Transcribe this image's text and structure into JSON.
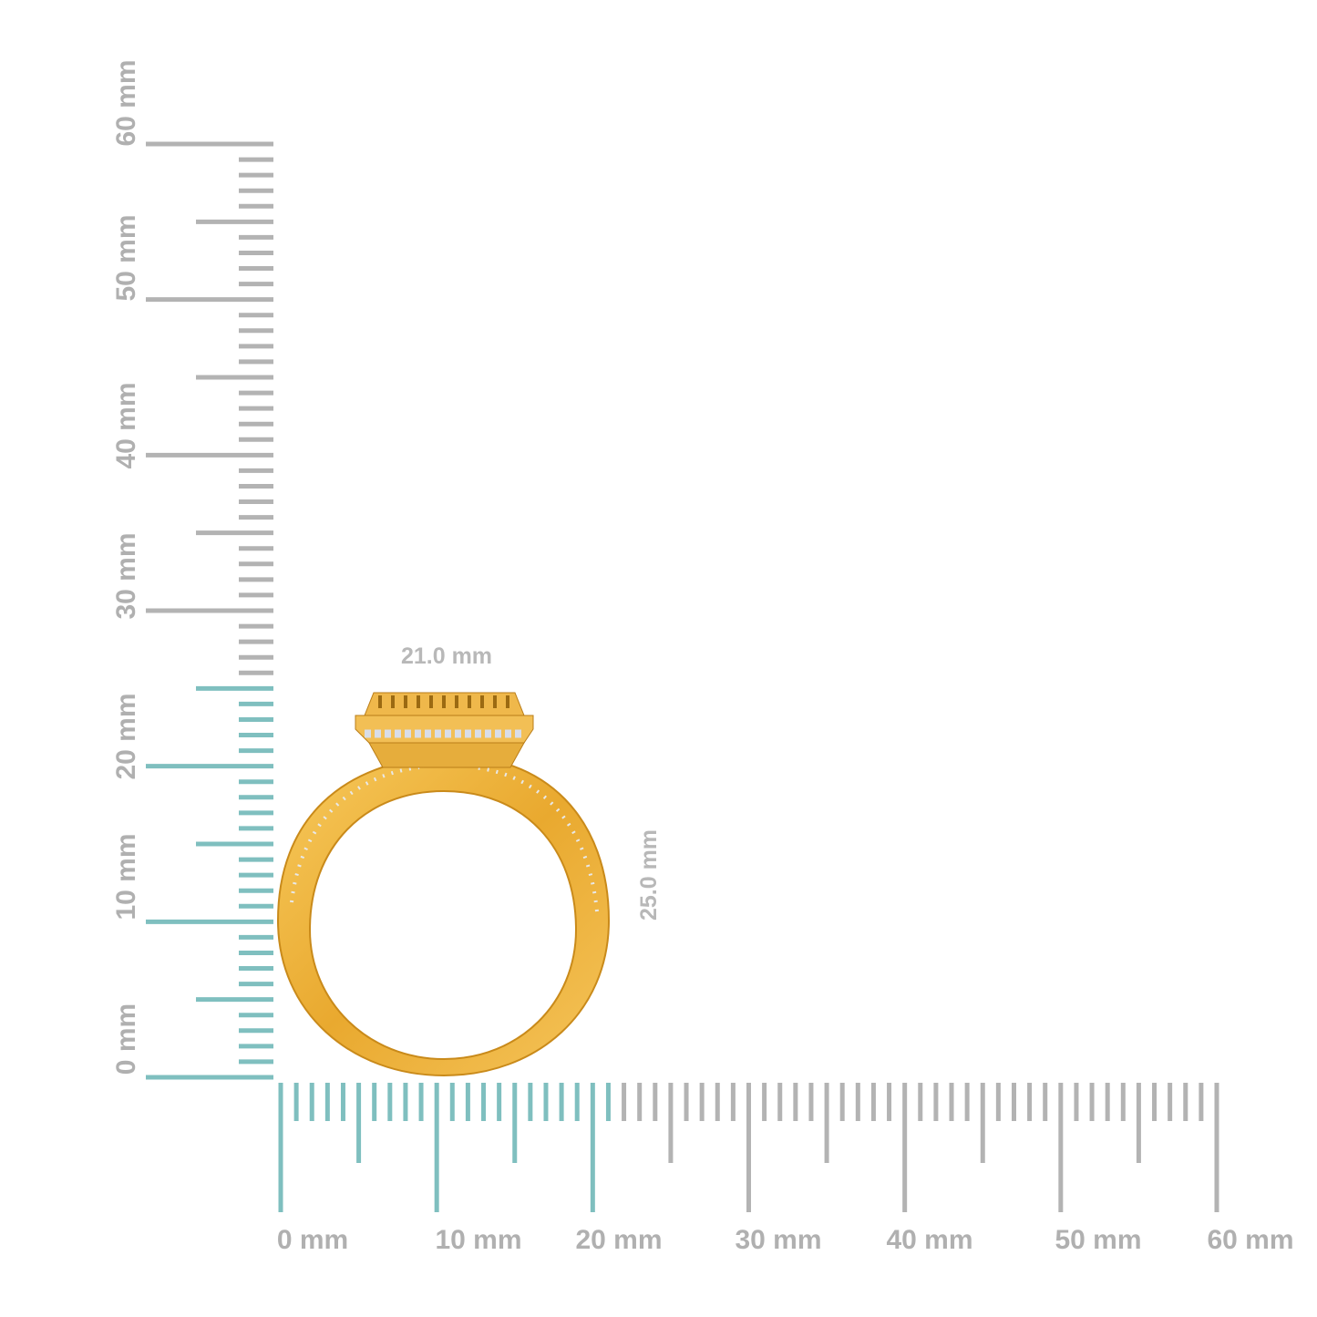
{
  "horizontal_ruler": {
    "labels": [
      "0 mm",
      "10 mm",
      "20 mm",
      "30 mm",
      "40 mm",
      "50 mm",
      "60 mm"
    ]
  },
  "vertical_ruler": {
    "labels": [
      "0 mm",
      "10 mm",
      "20 mm",
      "30 mm",
      "40 mm",
      "50 mm",
      "60 mm"
    ]
  },
  "dimensions": {
    "width": "21.0 mm",
    "height": "25.0 mm"
  }
}
